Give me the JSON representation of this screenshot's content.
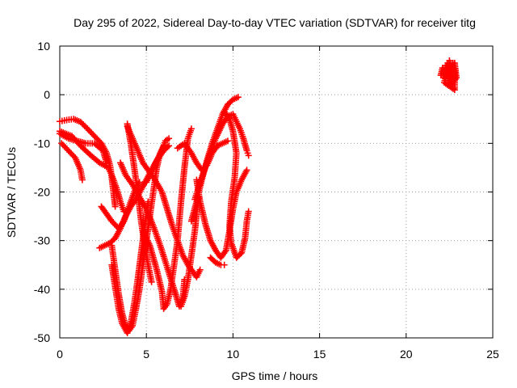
{
  "chart_data": {
    "type": "scatter",
    "title": "Day 295 of 2022, Sidereal Day-to-day VTEC variation (SDTVAR) for receiver titg",
    "xlabel": "GPS time / hours",
    "ylabel": "SDTVAR / TECUs",
    "xlim": [
      0,
      25
    ],
    "ylim": [
      -50,
      10
    ],
    "xticks": [
      0,
      5,
      10,
      15,
      20,
      25
    ],
    "yticks": [
      -50,
      -40,
      -30,
      -20,
      -10,
      0,
      10
    ],
    "xtick_labels": [
      "0",
      "5",
      "10",
      "15",
      "20",
      "25"
    ],
    "ytick_labels": [
      "-50",
      "-40",
      "-30",
      "-20",
      "-10",
      "0",
      "10"
    ],
    "grid": true,
    "marker": "plus",
    "color": "#ff0000",
    "series": [
      {
        "points": [
          [
            0.0,
            -5.5
          ],
          [
            0.4,
            -5.2
          ],
          [
            0.8,
            -5.0
          ],
          [
            1.2,
            -5.6
          ],
          [
            1.6,
            -7.0
          ],
          [
            2.0,
            -8.5
          ],
          [
            2.4,
            -10.0
          ],
          [
            2.7,
            -12.0
          ],
          [
            2.9,
            -14.5
          ],
          [
            3.0,
            -17.0
          ],
          [
            3.1,
            -20.0
          ],
          [
            3.2,
            -23.0
          ]
        ]
      },
      {
        "points": [
          [
            0.0,
            -8.0
          ],
          [
            0.5,
            -9.0
          ],
          [
            1.0,
            -9.5
          ],
          [
            1.5,
            -10.0
          ],
          [
            2.0,
            -10.0
          ],
          [
            2.5,
            -11.5
          ],
          [
            2.7,
            -14.0
          ]
        ]
      },
      {
        "points": [
          [
            0.1,
            -10.0
          ],
          [
            0.5,
            -11.5
          ],
          [
            0.9,
            -13.0
          ],
          [
            1.2,
            -15.5
          ],
          [
            1.3,
            -17.5
          ]
        ]
      },
      {
        "points": [
          [
            0.0,
            -7.5
          ],
          [
            0.7,
            -8.5
          ],
          [
            1.2,
            -10.5
          ],
          [
            1.8,
            -12.5
          ],
          [
            2.3,
            -14.0
          ],
          [
            2.8,
            -15.0
          ],
          [
            3.0,
            -16.5
          ],
          [
            3.3,
            -19.5
          ],
          [
            3.5,
            -22.0
          ],
          [
            3.7,
            -24.0
          ]
        ]
      },
      {
        "points": [
          [
            2.3,
            -31.5
          ],
          [
            2.6,
            -31.0
          ],
          [
            2.9,
            -30.5
          ],
          [
            3.2,
            -29.5
          ],
          [
            3.5,
            -27.5
          ],
          [
            3.8,
            -25.0
          ],
          [
            4.1,
            -23.0
          ],
          [
            4.4,
            -21.5
          ],
          [
            4.7,
            -19.5
          ],
          [
            5.0,
            -17.5
          ],
          [
            5.3,
            -15.5
          ],
          [
            5.6,
            -13.5
          ],
          [
            5.9,
            -11.5
          ],
          [
            6.1,
            -9.5
          ],
          [
            6.3,
            -9.0
          ]
        ]
      },
      {
        "points": [
          [
            2.4,
            -23.0
          ],
          [
            2.7,
            -24.5
          ],
          [
            3.0,
            -26.0
          ],
          [
            3.4,
            -27.5
          ],
          [
            3.7,
            -26.0
          ],
          [
            4.0,
            -23.0
          ],
          [
            4.3,
            -20.0
          ],
          [
            4.6,
            -18.0
          ]
        ]
      },
      {
        "points": [
          [
            3.0,
            -31.0
          ],
          [
            3.2,
            -36.0
          ],
          [
            3.4,
            -41.0
          ],
          [
            3.6,
            -45.0
          ],
          [
            3.8,
            -47.5
          ],
          [
            4.0,
            -48.5
          ],
          [
            4.2,
            -47.5
          ],
          [
            4.4,
            -44.0
          ],
          [
            4.6,
            -40.0
          ],
          [
            4.8,
            -35.0
          ],
          [
            5.0,
            -30.0
          ],
          [
            5.2,
            -25.0
          ],
          [
            5.4,
            -20.0
          ],
          [
            5.6,
            -15.0
          ],
          [
            5.8,
            -12.0
          ],
          [
            6.0,
            -10.5
          ]
        ]
      },
      {
        "points": [
          [
            3.0,
            -35.0
          ],
          [
            3.2,
            -39.5
          ],
          [
            3.4,
            -44.0
          ],
          [
            3.6,
            -47.0
          ],
          [
            3.9,
            -49.0
          ],
          [
            4.1,
            -47.0
          ],
          [
            4.3,
            -43.0
          ],
          [
            4.5,
            -38.0
          ],
          [
            4.7,
            -32.5
          ],
          [
            4.9,
            -27.0
          ],
          [
            5.1,
            -22.0
          ]
        ]
      },
      {
        "points": [
          [
            3.9,
            -6.0
          ],
          [
            4.1,
            -10.0
          ],
          [
            4.3,
            -15.0
          ],
          [
            4.5,
            -20.0
          ],
          [
            4.7,
            -26.0
          ],
          [
            4.9,
            -31.0
          ],
          [
            5.1,
            -35.0
          ],
          [
            5.3,
            -38.5
          ]
        ]
      },
      {
        "points": [
          [
            3.5,
            -14.0
          ],
          [
            3.8,
            -16.5
          ],
          [
            4.2,
            -18.5
          ],
          [
            4.6,
            -21.0
          ],
          [
            5.0,
            -23.5
          ],
          [
            5.4,
            -27.0
          ],
          [
            5.8,
            -31.0
          ],
          [
            6.2,
            -35.5
          ],
          [
            6.6,
            -40.0
          ],
          [
            6.9,
            -43.5
          ],
          [
            7.1,
            -42.0
          ],
          [
            7.2,
            -38.0
          ]
        ]
      },
      {
        "points": [
          [
            4.8,
            -28.0
          ],
          [
            5.2,
            -31.0
          ],
          [
            5.6,
            -36.0
          ],
          [
            5.9,
            -40.5
          ],
          [
            6.0,
            -44.0
          ],
          [
            6.2,
            -43.0
          ],
          [
            6.4,
            -40.0
          ],
          [
            6.6,
            -35.0
          ],
          [
            6.8,
            -30.0
          ],
          [
            7.0,
            -22.0
          ],
          [
            7.2,
            -15.0
          ],
          [
            7.4,
            -9.0
          ],
          [
            7.6,
            -7.0
          ]
        ]
      },
      {
        "points": [
          [
            5.0,
            -18.0
          ],
          [
            5.3,
            -15.5
          ],
          [
            5.7,
            -13.0
          ],
          [
            6.0,
            -11.5
          ],
          [
            6.3,
            -10.5
          ]
        ]
      },
      {
        "points": [
          [
            3.9,
            -6.5
          ],
          [
            4.2,
            -9.0
          ],
          [
            4.5,
            -11.5
          ],
          [
            4.8,
            -14.0
          ],
          [
            5.1,
            -15.5
          ],
          [
            5.5,
            -17.5
          ],
          [
            5.9,
            -20.0
          ],
          [
            6.2,
            -23.5
          ],
          [
            6.5,
            -27.0
          ],
          [
            6.8,
            -30.0
          ],
          [
            7.1,
            -33.0
          ],
          [
            7.4,
            -35.0
          ],
          [
            7.7,
            -36.5
          ],
          [
            7.9,
            -37.5
          ],
          [
            8.1,
            -36.0
          ]
        ]
      },
      {
        "points": [
          [
            6.8,
            -11.0
          ],
          [
            7.2,
            -10.0
          ],
          [
            7.6,
            -12.0
          ],
          [
            7.9,
            -14.0
          ],
          [
            8.2,
            -15.5
          ],
          [
            8.5,
            -14.5
          ],
          [
            8.8,
            -12.0
          ],
          [
            9.1,
            -10.5
          ],
          [
            9.4,
            -10.0
          ],
          [
            9.7,
            -9.5
          ]
        ]
      },
      {
        "points": [
          [
            7.0,
            -43.5
          ],
          [
            7.2,
            -41.5
          ],
          [
            7.4,
            -38.0
          ],
          [
            7.6,
            -33.0
          ],
          [
            7.8,
            -28.0
          ],
          [
            8.0,
            -21.0
          ]
        ]
      },
      {
        "points": [
          [
            7.6,
            -26.0
          ],
          [
            7.9,
            -22.0
          ],
          [
            8.2,
            -17.5
          ],
          [
            8.5,
            -13.5
          ],
          [
            8.8,
            -10.0
          ],
          [
            9.1,
            -7.0
          ],
          [
            9.4,
            -4.0
          ],
          [
            9.7,
            -2.0
          ],
          [
            10.0,
            -1.0
          ],
          [
            10.3,
            -0.5
          ]
        ]
      },
      {
        "points": [
          [
            7.8,
            -21.5
          ],
          [
            8.2,
            -17.0
          ],
          [
            8.6,
            -13.0
          ],
          [
            9.0,
            -9.0
          ],
          [
            9.4,
            -6.0
          ],
          [
            9.7,
            -4.5
          ],
          [
            10.0,
            -4.0
          ],
          [
            10.2,
            -5.5
          ],
          [
            10.4,
            -7.0
          ],
          [
            10.6,
            -9.0
          ],
          [
            10.8,
            -11.5
          ],
          [
            10.9,
            -12.5
          ]
        ]
      },
      {
        "points": [
          [
            7.9,
            -17.5
          ],
          [
            8.1,
            -22.0
          ],
          [
            8.4,
            -26.5
          ],
          [
            8.7,
            -30.0
          ],
          [
            9.0,
            -32.0
          ],
          [
            9.3,
            -33.5
          ],
          [
            9.6,
            -32.0
          ],
          [
            9.8,
            -28.0
          ],
          [
            10.0,
            -23.5
          ],
          [
            10.2,
            -20.0
          ],
          [
            10.5,
            -17.5
          ],
          [
            10.8,
            -15.5
          ]
        ]
      },
      {
        "points": [
          [
            8.7,
            -33.5
          ],
          [
            9.0,
            -34.5
          ],
          [
            9.3,
            -35.0
          ],
          [
            9.5,
            -35.0
          ]
        ]
      },
      {
        "points": [
          [
            9.5,
            -3.5
          ],
          [
            9.8,
            -5.0
          ],
          [
            10.0,
            -7.5
          ],
          [
            10.2,
            -12.0
          ],
          [
            10.1,
            -17.0
          ],
          [
            9.9,
            -22.0
          ],
          [
            9.8,
            -27.0
          ],
          [
            9.9,
            -30.5
          ],
          [
            10.2,
            -33.5
          ],
          [
            10.5,
            -32.5
          ],
          [
            10.7,
            -29.5
          ],
          [
            10.8,
            -26.0
          ],
          [
            10.9,
            -24.0
          ]
        ]
      },
      {
        "points": [
          [
            22.0,
            4.0
          ],
          [
            22.1,
            5.5
          ],
          [
            22.2,
            3.5
          ],
          [
            22.3,
            6.0
          ],
          [
            22.4,
            4.5
          ],
          [
            22.5,
            2.5
          ],
          [
            22.5,
            7.0
          ],
          [
            22.6,
            5.0
          ],
          [
            22.7,
            3.0
          ],
          [
            22.7,
            6.5
          ],
          [
            22.8,
            4.5
          ],
          [
            22.8,
            1.0
          ],
          [
            22.2,
            2.5
          ],
          [
            22.3,
            4.0
          ],
          [
            22.4,
            6.5
          ],
          [
            22.6,
            2.0
          ],
          [
            22.9,
            3.5
          ],
          [
            22.8,
            6.5
          ]
        ]
      }
    ]
  }
}
